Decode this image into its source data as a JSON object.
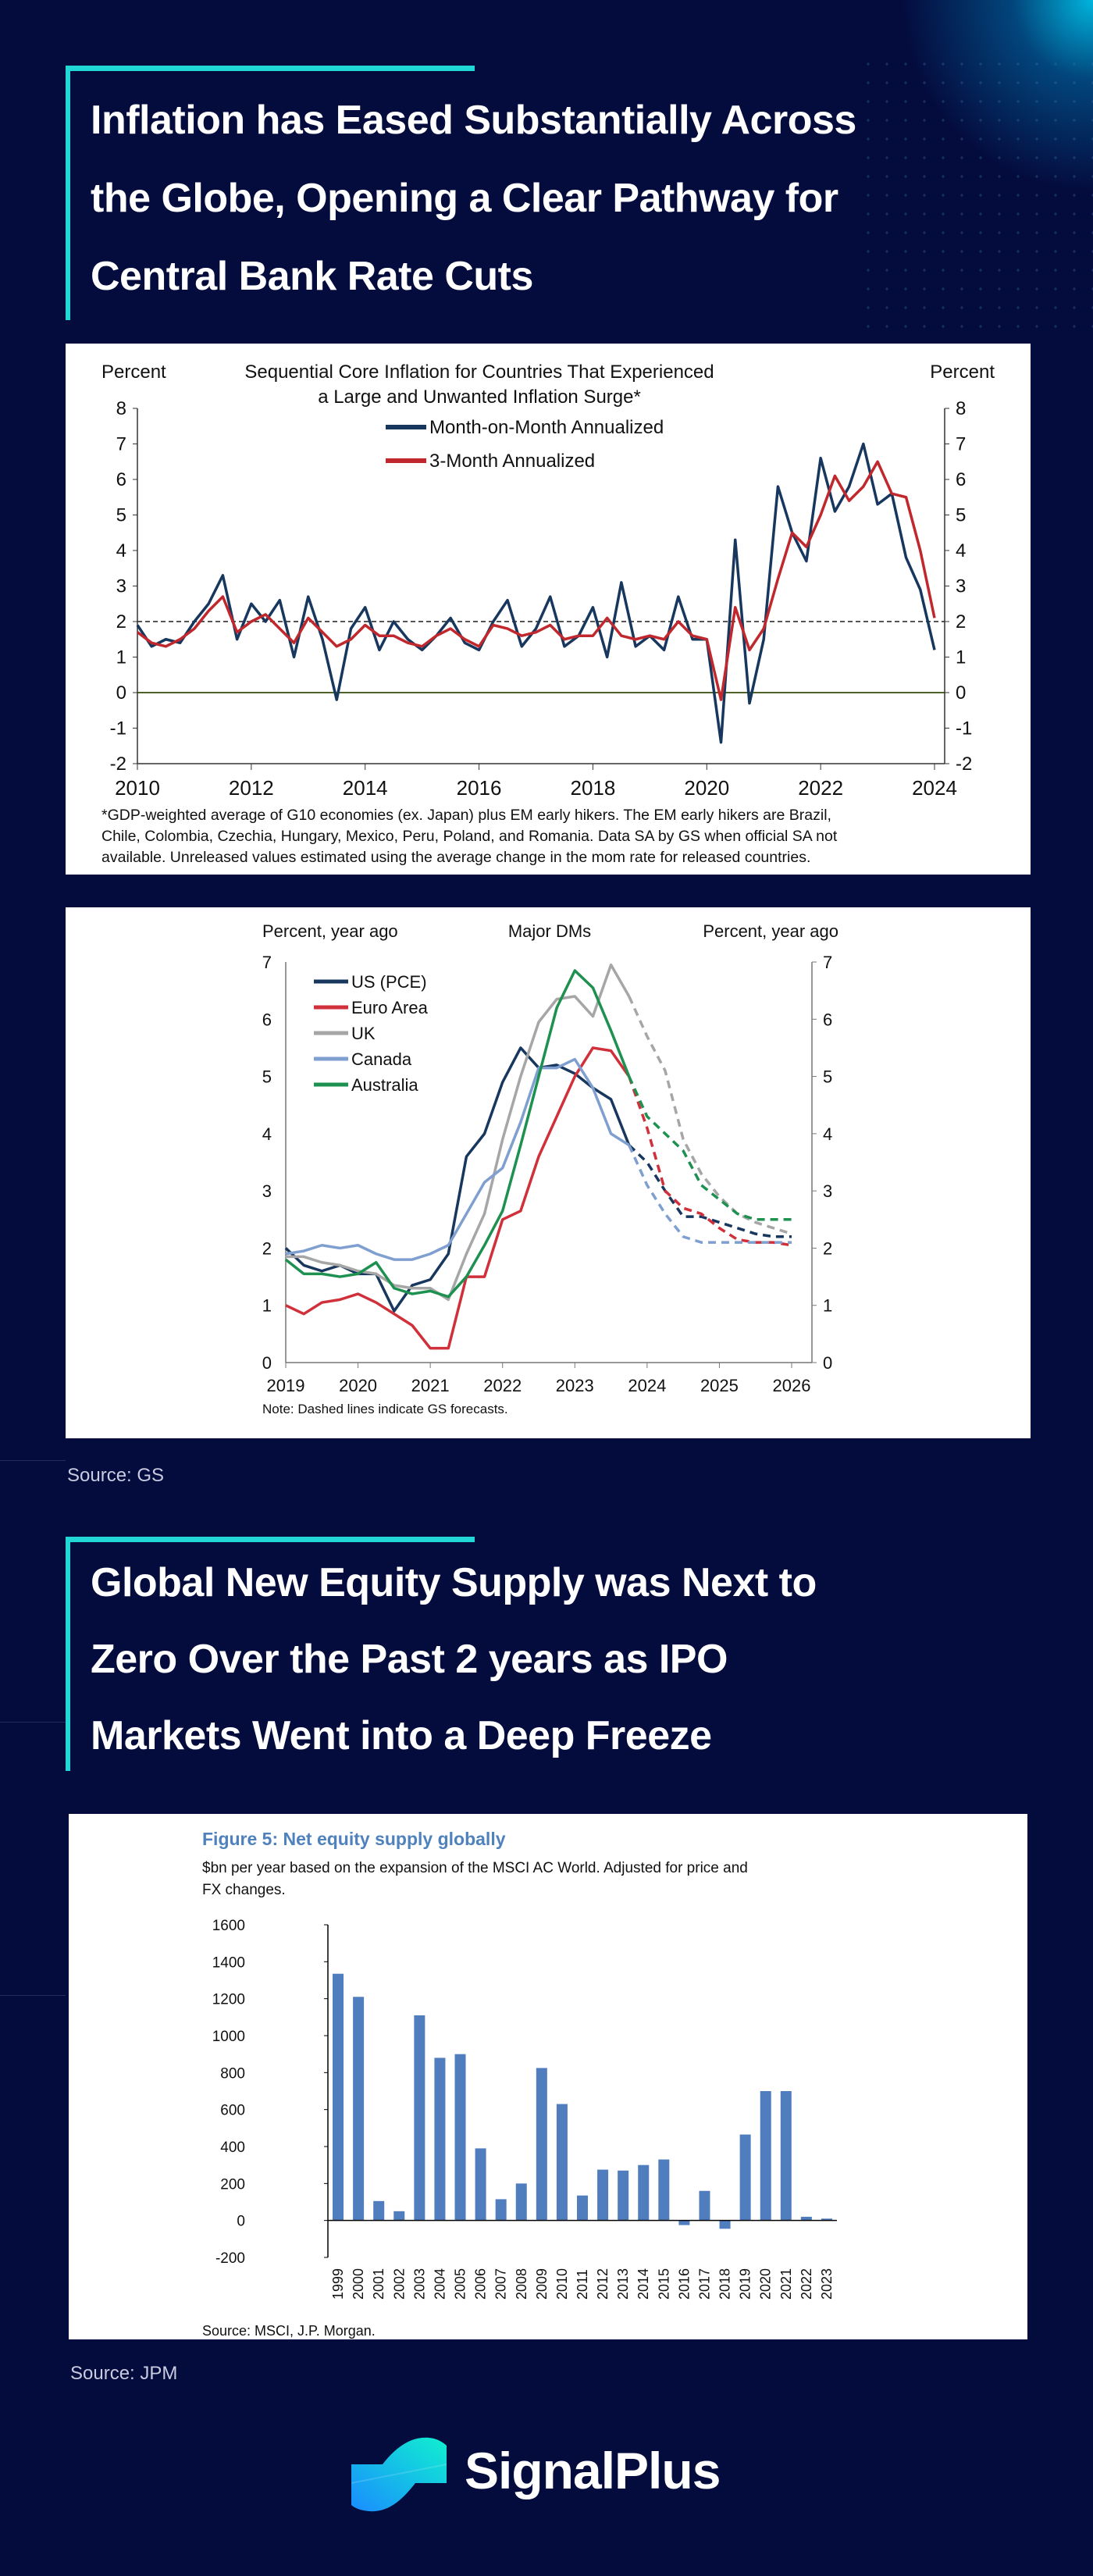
{
  "section1": {
    "title_lines": [
      "Inflation has Eased Substantially Across",
      "the Globe, Opening a Clear Pathway for",
      "Central Bank Rate Cuts"
    ],
    "source": "Source: GS"
  },
  "section2": {
    "title_lines": [
      "Global New Equity Supply was Next to",
      "Zero Over the Past 2 years as IPO",
      "Markets Went into a Deep Freeze"
    ],
    "source": "Source: JPM"
  },
  "brand": {
    "name": "SignalPlus",
    "accent": "#22d8d6"
  },
  "chart_data": [
    {
      "type": "line",
      "title_lines": [
        "Sequential Core Inflation for Countries That Experienced",
        "a Large and Unwanted Inflation Surge*"
      ],
      "ylabel_left": "Percent",
      "ylabel_right": "Percent",
      "ylim": [
        -2,
        8
      ],
      "yticks": [
        "8",
        "7",
        "6",
        "5",
        "4",
        "3",
        "2",
        "1",
        "0",
        "-1",
        "-2"
      ],
      "xlim": [
        2010,
        2024
      ],
      "xticks": [
        "2010",
        "2012",
        "2014",
        "2016",
        "2018",
        "2020",
        "2022",
        "2024"
      ],
      "reference_lines": [
        {
          "value": 0,
          "style": "solid",
          "color": "#4f6228"
        },
        {
          "value": 2,
          "style": "dashed",
          "color": "#555555"
        }
      ],
      "x_start": 2010,
      "x_step": 0.25,
      "series": [
        {
          "name": "Month-on-Month Annualized",
          "color": "#17375e",
          "values": [
            1.9,
            1.3,
            1.5,
            1.4,
            2.0,
            2.5,
            3.3,
            1.5,
            2.5,
            2.0,
            2.6,
            1.0,
            2.7,
            1.5,
            -0.2,
            1.8,
            2.4,
            1.2,
            2.0,
            1.5,
            1.2,
            1.6,
            2.1,
            1.4,
            1.2,
            2.0,
            2.6,
            1.3,
            1.8,
            2.7,
            1.3,
            1.6,
            2.4,
            1.0,
            3.1,
            1.3,
            1.6,
            1.2,
            2.7,
            1.5,
            1.5,
            -1.4,
            4.3,
            -0.3,
            1.5,
            5.8,
            4.5,
            3.7,
            6.6,
            5.1,
            5.8,
            7.0,
            5.3,
            5.6,
            3.8,
            2.9,
            1.2
          ]
        },
        {
          "name": "3-Month Annualized",
          "color": "#c0282d",
          "values": [
            1.7,
            1.4,
            1.3,
            1.5,
            1.8,
            2.3,
            2.7,
            1.7,
            2.0,
            2.2,
            1.8,
            1.4,
            2.1,
            1.7,
            1.3,
            1.5,
            1.9,
            1.6,
            1.6,
            1.4,
            1.3,
            1.6,
            1.8,
            1.5,
            1.3,
            1.9,
            1.8,
            1.6,
            1.7,
            1.9,
            1.5,
            1.6,
            1.6,
            2.1,
            1.6,
            1.5,
            1.6,
            1.5,
            2.0,
            1.6,
            1.5,
            -0.2,
            2.4,
            1.2,
            1.8,
            3.2,
            4.5,
            4.1,
            5.0,
            6.1,
            5.4,
            5.8,
            6.5,
            5.6,
            5.5,
            4.0,
            2.1
          ]
        }
      ],
      "footnote_lines": [
        "*GDP-weighted average of G10 economies (ex. Japan) plus EM  early hikers. The EM  early hikers are Brazil,",
        "Chile, Colombia,  Czechia, Hungary, Mexico, Peru, Poland, and Romania.  Data SA by GS when official SA not",
        "available. Unreleased values estimated using the average change in the mom  rate for released countries."
      ]
    },
    {
      "type": "line",
      "title": "Major DMs",
      "ylabel_left": "Percent, year ago",
      "ylabel_right": "Percent, year ago",
      "ylim": [
        0,
        7
      ],
      "yticks": [
        "7",
        "6",
        "5",
        "4",
        "3",
        "2",
        "1",
        "0"
      ],
      "xlim": [
        2019,
        2026
      ],
      "xticks": [
        "2019",
        "2020",
        "2021",
        "2022",
        "2023",
        "2024",
        "2025",
        "2026"
      ],
      "x_start": 2019,
      "x_step": 0.25,
      "forecast_start": 2023.75,
      "series": [
        {
          "name": "US (PCE)",
          "color": "#17375e",
          "actual": [
            2.0,
            1.7,
            1.6,
            1.7,
            1.55,
            1.55,
            0.9,
            1.35,
            1.45,
            1.9,
            3.6,
            4.0,
            4.9,
            5.5,
            5.15,
            5.2,
            5.05,
            4.8,
            4.6,
            3.8
          ],
          "forecast": [
            3.8,
            3.5,
            3.0,
            2.55,
            2.55,
            2.45,
            2.35,
            2.25,
            2.2,
            2.2
          ]
        },
        {
          "name": "Euro Area",
          "color": "#d0303a",
          "actual": [
            1.0,
            0.85,
            1.05,
            1.1,
            1.2,
            1.05,
            0.85,
            0.65,
            0.25,
            0.25,
            1.5,
            1.5,
            2.5,
            2.65,
            3.6,
            4.3,
            5.0,
            5.5,
            5.45,
            5.0
          ],
          "forecast": [
            5.0,
            4.1,
            3.0,
            2.7,
            2.6,
            2.35,
            2.15,
            2.1,
            2.1,
            2.05
          ]
        },
        {
          "name": "UK",
          "color": "#a6a6a6",
          "actual": [
            1.85,
            1.85,
            1.75,
            1.7,
            1.6,
            1.55,
            1.35,
            1.3,
            1.3,
            1.1,
            1.9,
            2.6,
            3.9,
            5.0,
            5.95,
            6.35,
            6.4,
            6.05,
            6.95,
            6.4
          ],
          "forecast": [
            6.4,
            5.7,
            5.1,
            3.9,
            3.3,
            2.9,
            2.6,
            2.45,
            2.35,
            2.25
          ]
        },
        {
          "name": "Canada",
          "color": "#7f9fd0",
          "actual": [
            1.9,
            1.95,
            2.05,
            2.0,
            2.05,
            1.9,
            1.8,
            1.8,
            1.9,
            2.05,
            2.6,
            3.15,
            3.4,
            4.2,
            5.15,
            5.15,
            5.3,
            4.8,
            4.0,
            3.8
          ],
          "forecast": [
            3.8,
            3.1,
            2.6,
            2.2,
            2.1,
            2.1,
            2.1,
            2.1,
            2.1,
            2.1
          ]
        },
        {
          "name": "Australia",
          "color": "#1e9050",
          "actual": [
            1.8,
            1.55,
            1.55,
            1.5,
            1.55,
            1.75,
            1.3,
            1.2,
            1.25,
            1.15,
            1.5,
            2.05,
            2.65,
            3.8,
            5.0,
            6.2,
            6.85,
            6.55,
            5.8,
            5.0
          ],
          "forecast": [
            5.0,
            4.3,
            4.0,
            3.7,
            3.1,
            2.85,
            2.6,
            2.5,
            2.5,
            2.5
          ]
        }
      ],
      "note": "Note: Dashed lines indicate GS  forecasts."
    },
    {
      "type": "bar",
      "title": "Figure 5: Net equity supply globally",
      "subtitle_lines": [
        "$bn per year based on the expansion of the MSCI AC World. Adjusted for price and",
        "FX changes."
      ],
      "ylim": [
        -200,
        1600
      ],
      "yticks": [
        "1600",
        "1400",
        "1200",
        "1000",
        "800",
        "600",
        "400",
        "200",
        "0",
        "-200"
      ],
      "categories": [
        "1999",
        "2000",
        "2001",
        "2002",
        "2003",
        "2004",
        "2005",
        "2006",
        "2007",
        "2008",
        "2009",
        "2010",
        "2011",
        "2012",
        "2013",
        "2014",
        "2015",
        "2016",
        "2017",
        "2018",
        "2019",
        "2020",
        "2021",
        "2022",
        "2023"
      ],
      "values": [
        1335,
        1210,
        105,
        50,
        1110,
        880,
        900,
        390,
        115,
        200,
        825,
        630,
        135,
        275,
        270,
        300,
        330,
        -25,
        160,
        -45,
        465,
        700,
        700,
        20,
        10
      ],
      "bar_color": "#4f7dbd",
      "title_color": "#4f81bd",
      "source": "Source: MSCI, J.P. Morgan."
    }
  ]
}
